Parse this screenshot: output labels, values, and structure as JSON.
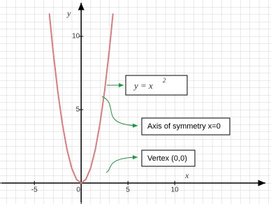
{
  "chart_data": {
    "type": "line",
    "x_label": "x",
    "y_label": "y",
    "x": [
      -3.4,
      -3,
      -2.5,
      -2,
      -1.5,
      -1,
      -0.5,
      0,
      0.5,
      1,
      1.5,
      2,
      2.5,
      3,
      3.4
    ],
    "series": [
      {
        "name": "y = x^2",
        "color": "#e07a7a",
        "values": [
          11.56,
          9,
          6.25,
          4,
          2.25,
          1,
          0.25,
          0,
          0.25,
          1,
          2.25,
          4,
          6.25,
          9,
          11.56
        ]
      }
    ],
    "xlim": [
      -8,
      19.5
    ],
    "ylim": [
      -1,
      12
    ],
    "xticks": [
      -5,
      0,
      5,
      10
    ],
    "yticks": [
      5,
      10
    ],
    "grid": true,
    "equation": {
      "base": "y  =  x",
      "exponent": "2"
    },
    "annotations": [
      "Axis of symmetry x=0",
      "Vertex (0,0)"
    ]
  }
}
